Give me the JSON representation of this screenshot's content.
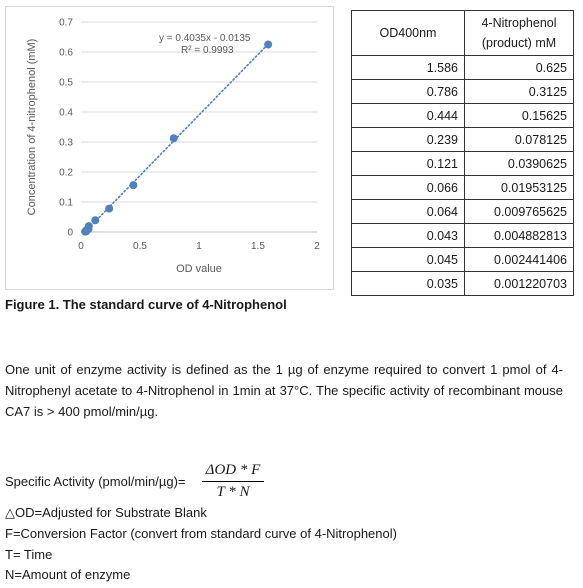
{
  "chart_data": {
    "type": "scatter",
    "x": [
      1.586,
      0.786,
      0.444,
      0.239,
      0.121,
      0.066,
      0.064,
      0.043,
      0.045,
      0.035
    ],
    "y": [
      0.625,
      0.3125,
      0.15625,
      0.078125,
      0.0390625,
      0.01953125,
      0.009765625,
      0.004882813,
      0.002441406,
      0.001220703
    ],
    "xlabel": "OD value",
    "ylabel": "Concentration of 4-nitrophenol (mM)",
    "xlim": [
      0,
      2
    ],
    "ylim": [
      0,
      0.7
    ],
    "xticks": [
      "0",
      "0.5",
      "1",
      "1.5",
      "2"
    ],
    "yticks": [
      "0",
      "0.1",
      "0.2",
      "0.3",
      "0.4",
      "0.5",
      "0.6",
      "0.7"
    ],
    "trendline": {
      "slope": 0.4035,
      "intercept": -0.0135,
      "style": "dotted"
    },
    "equation": "y = 0.4035x - 0.0135",
    "r_squared": "R² = 0.9993",
    "grid": "horizontal",
    "marker_color": "#4f81bd",
    "trendline_color": "#4f81bd"
  },
  "caption": "Figure 1. The standard curve of 4-Nitrophenol",
  "table": {
    "header_col1": "OD400nm",
    "header_col2_line1": "4-Nitrophenol",
    "header_col2_line2": "(product) mM",
    "rows": [
      [
        "1.586",
        "0.625"
      ],
      [
        "0.786",
        "0.3125"
      ],
      [
        "0.444",
        "0.15625"
      ],
      [
        "0.239",
        "0.078125"
      ],
      [
        "0.121",
        "0.0390625"
      ],
      [
        "0.066",
        "0.01953125"
      ],
      [
        "0.064",
        "0.009765625"
      ],
      [
        "0.043",
        "0.004882813"
      ],
      [
        "0.045",
        "0.002441406"
      ],
      [
        "0.035",
        "0.001220703"
      ]
    ]
  },
  "paragraph": "One unit of enzyme activity is defined as the 1 µg of enzyme required to convert 1 pmol of 4-Nitrophenyl acetate to 4-Nitrophenol in 1min at 37°C. The specific activity of recombinant mouse CA7 is > 400 pmol/min/µg.",
  "formula": {
    "label": "Specific Activity (pmol/min/µg)=",
    "numerator": "ΔOD * F",
    "denominator": "T * N"
  },
  "definitions": [
    "△OD=Adjusted for Substrate Blank",
    "F=Conversion Factor (convert from standard curve of 4-Nitrophenol)",
    "T= Time",
    "N=Amount of enzyme"
  ]
}
